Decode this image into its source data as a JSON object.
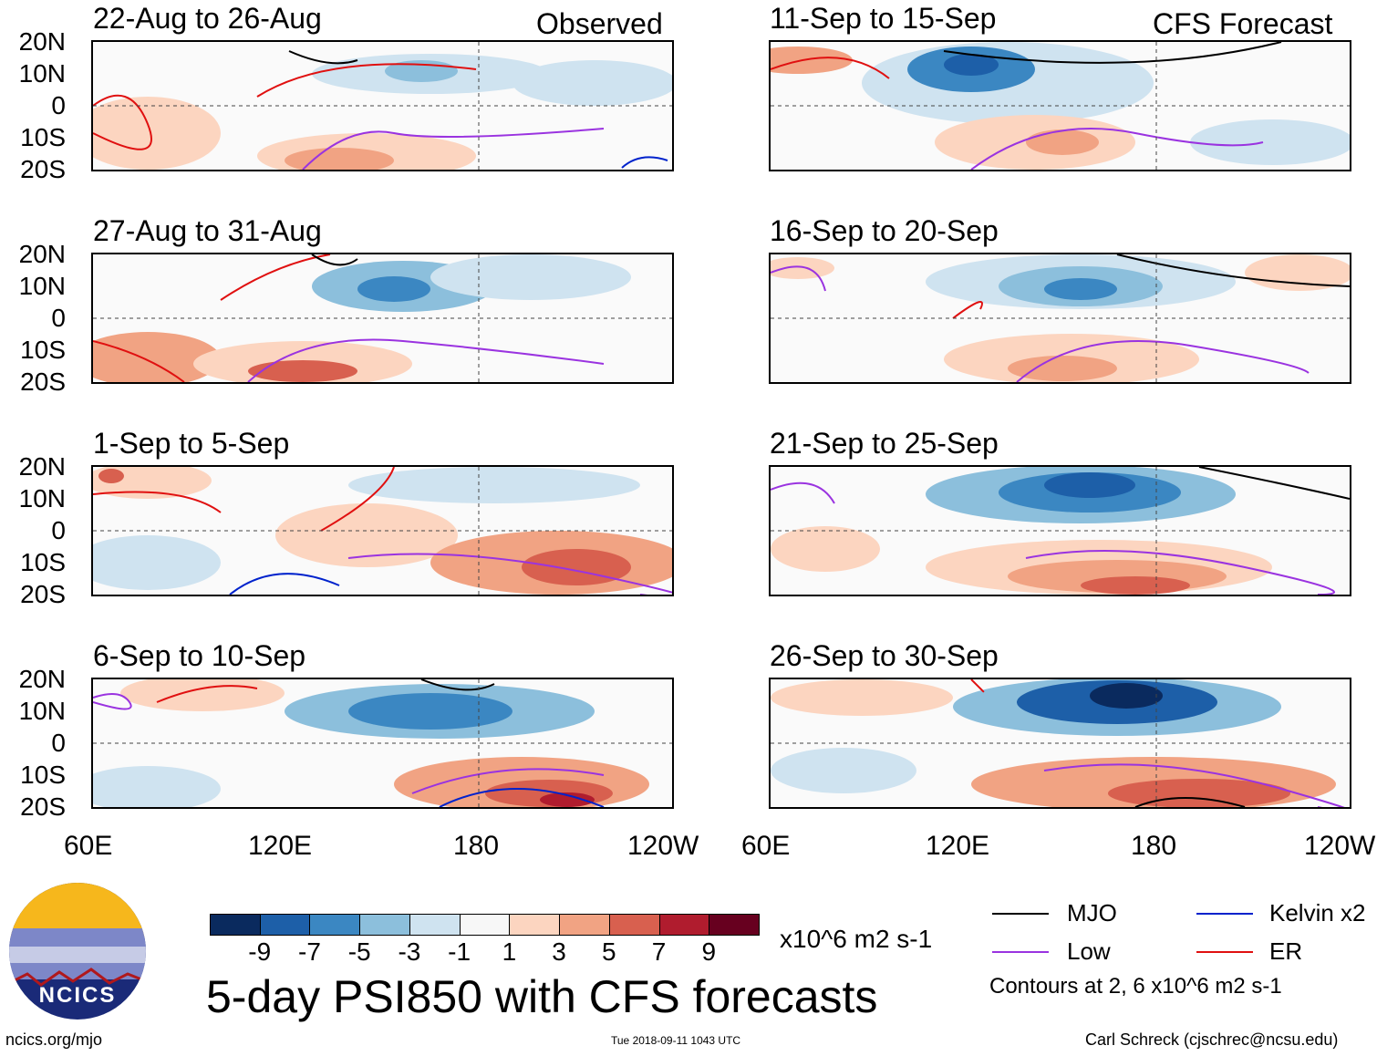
{
  "observed_label": "Observed",
  "forecast_label": "CFS Forecast",
  "panels": [
    {
      "title": "22-Aug to 26-Aug"
    },
    {
      "title": "27-Aug to 31-Aug"
    },
    {
      "title": "1-Sep to 5-Sep"
    },
    {
      "title": "6-Sep to 10-Sep"
    },
    {
      "title": "11-Sep to 15-Sep"
    },
    {
      "title": "16-Sep to 20-Sep"
    },
    {
      "title": "21-Sep to 25-Sep"
    },
    {
      "title": "26-Sep to 30-Sep"
    }
  ],
  "lat_labels": [
    "20N",
    "10N",
    "0",
    "10S",
    "20S"
  ],
  "lon_labels": [
    "60E",
    "120E",
    "180",
    "120W"
  ],
  "colorbar": {
    "colors": [
      "#0a2a5e",
      "#1d5fa8",
      "#3b87c2",
      "#8cbfdc",
      "#cfe3f0",
      "#f7f7f7",
      "#fcd5c0",
      "#f1a383",
      "#d8604f",
      "#b01c2e",
      "#67001f"
    ],
    "labels": [
      "-9",
      "-7",
      "-5",
      "-3",
      "-1",
      "1",
      "3",
      "5",
      "7",
      "9"
    ],
    "units": "x10^6 m2 s-1"
  },
  "main_title": "5-day PSI850 with CFS forecasts",
  "legend": {
    "mjo": "MJO",
    "kelvin": "Kelvin x2",
    "low": "Low",
    "er": "ER",
    "mjo_color": "#000000",
    "kelvin_color": "#0022cc",
    "low_color": "#9a33e0",
    "er_color": "#e01010",
    "contours_note": "Contours at 2, 6 x10^6 m2 s-1"
  },
  "logo_text": "NCICS",
  "footer": {
    "url": "ncics.org/mjo",
    "timestamp": "Tue 2018-09-11 1043 UTC",
    "author": "Carl Schreck (cjschrec@ncsu.edu)"
  }
}
